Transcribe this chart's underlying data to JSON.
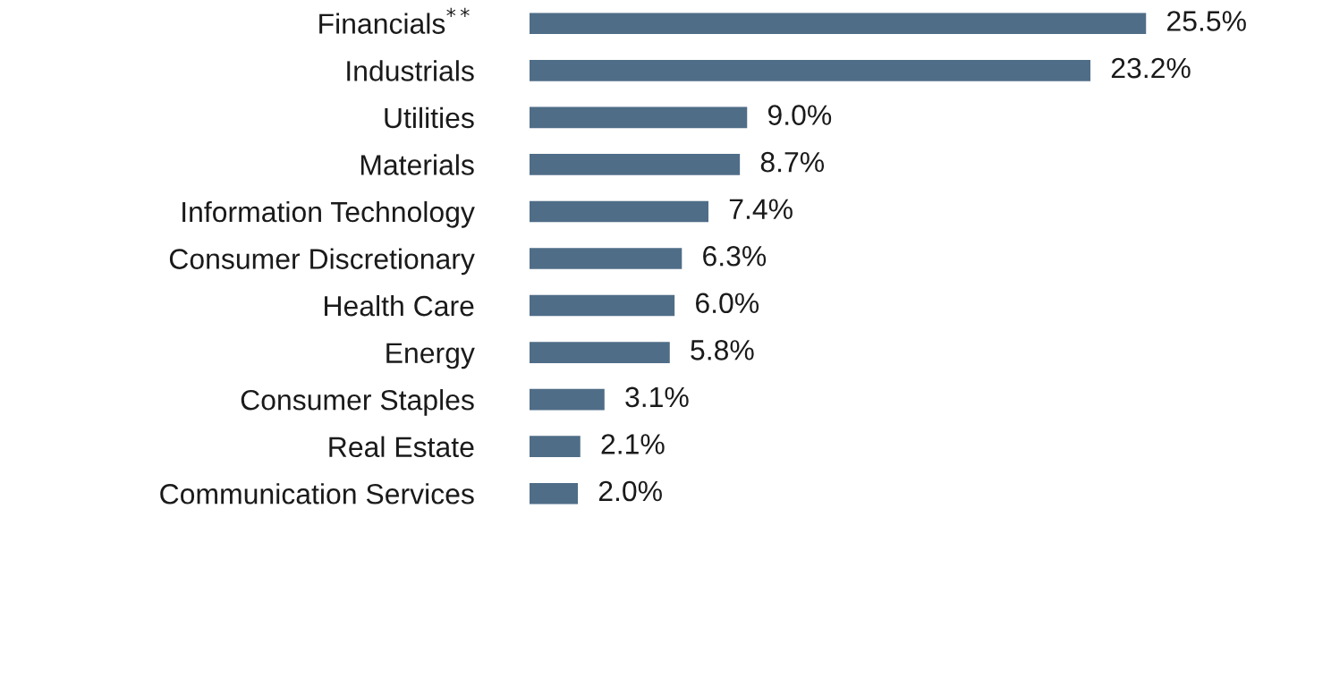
{
  "chart_data": {
    "type": "bar",
    "orientation": "horizontal",
    "categories": [
      "Financials$^{**}$",
      "Industrials",
      "Utilities",
      "Materials",
      "Information Technology",
      "Consumer Discretionary",
      "Health Care",
      "Energy",
      "Consumer Staples",
      "Real Estate",
      "Communication Services"
    ],
    "values": [
      25.5,
      23.2,
      9.0,
      8.7,
      7.4,
      6.3,
      6.0,
      5.8,
      3.1,
      2.1,
      2.0
    ],
    "value_labels": [
      "25.5%",
      "23.2%",
      "9.0%",
      "8.7%",
      "7.4%",
      "6.3%",
      "6.0%",
      "5.8%",
      "3.1%",
      "2.1%",
      "2.0%"
    ],
    "color": "#4f6d87",
    "grid": false,
    "legend": false
  }
}
